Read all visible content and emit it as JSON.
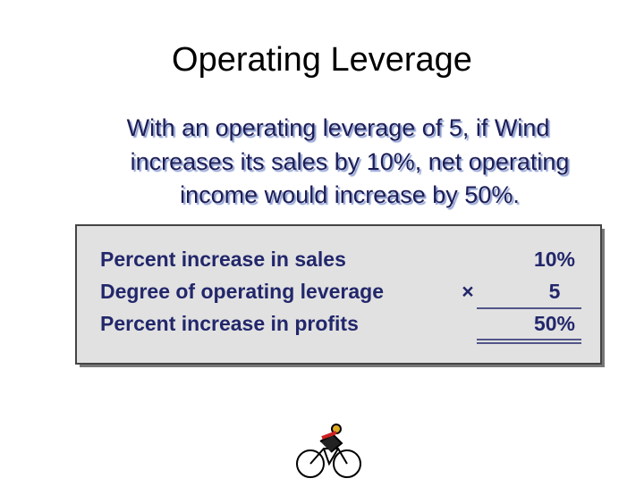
{
  "header": {
    "title": "Operating Leverage"
  },
  "body": {
    "lines": [
      "With an operating leverage of 5, if Wind",
      "increases its sales by 10%,  net operating",
      "income would increase by 50%."
    ]
  },
  "table": {
    "rows": [
      {
        "label": "Percent increase in sales",
        "value": "10%"
      },
      {
        "label": "Degree of operating leverage",
        "operator": "×",
        "value": "5"
      },
      {
        "label": "Percent increase in profits",
        "value": "50%"
      }
    ]
  }
}
